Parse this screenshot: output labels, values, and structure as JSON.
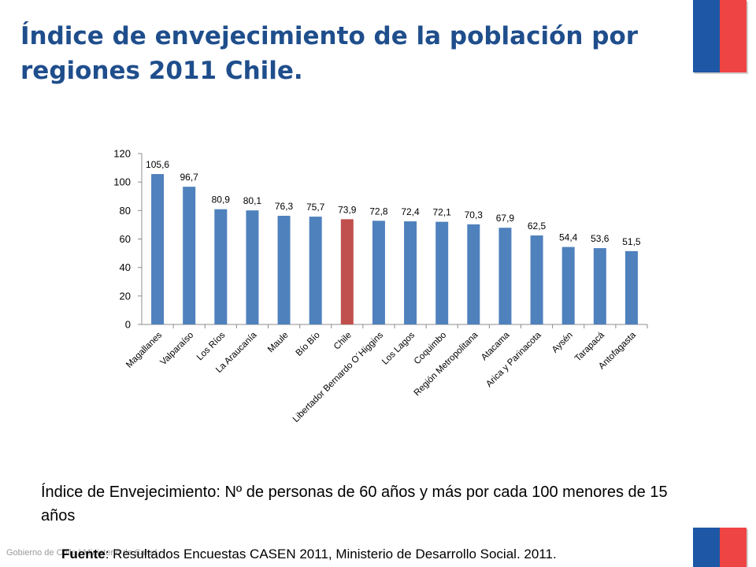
{
  "slide": {
    "title": "Índice de envejecimiento de la población por regiones 2011 Chile.",
    "definition_label": "Índice de Envejecimiento:",
    "definition_text": "Nº de personas de 60 años y más por cada 100 menores de  15 años",
    "source_label": "Fuente",
    "source_text": ": Resultados Encuestas CASEN 2011, Ministerio de Desarrollo Social. 2011.",
    "footer_brand": "Gobierno de Chile  |  Ministerio de Salud"
  },
  "colors": {
    "title": "#1f4e8c",
    "bar": "#4f81bd",
    "highlight_bar": "#c0504d",
    "flag_blue": "#1d57a6",
    "flag_red": "#ef4444"
  },
  "chart_data": {
    "type": "bar",
    "categories": [
      "Magallanes",
      "Valparaíso",
      "Los Ríos",
      "La Araucanía",
      "Maule",
      "Bío Bío",
      "Chile",
      "Libertador Bernardo O´Higgins",
      "Los Lagos",
      "Coquimbo",
      "Región Metropolitana",
      "Atacama",
      "Arica y Parinacota",
      "Aysén",
      "Tarapacá",
      "Antofagasta"
    ],
    "values": [
      105.6,
      96.7,
      80.9,
      80.1,
      76.3,
      75.7,
      73.9,
      72.8,
      72.4,
      72.1,
      70.3,
      67.9,
      62.5,
      54.4,
      53.6,
      51.5
    ],
    "value_labels": [
      "105,6",
      "96,7",
      "80,9",
      "80,1",
      "76,3",
      "75,7",
      "73,9",
      "72,8",
      "72,4",
      "72,1",
      "70,3",
      "67,9",
      "62,5",
      "54,4",
      "53,6",
      "51,5"
    ],
    "highlight_category": "Chile",
    "yticks": [
      "0",
      "20",
      "40",
      "60",
      "80",
      "100",
      "120"
    ],
    "ylim": [
      0,
      120
    ],
    "grid": false,
    "legend": "none"
  }
}
